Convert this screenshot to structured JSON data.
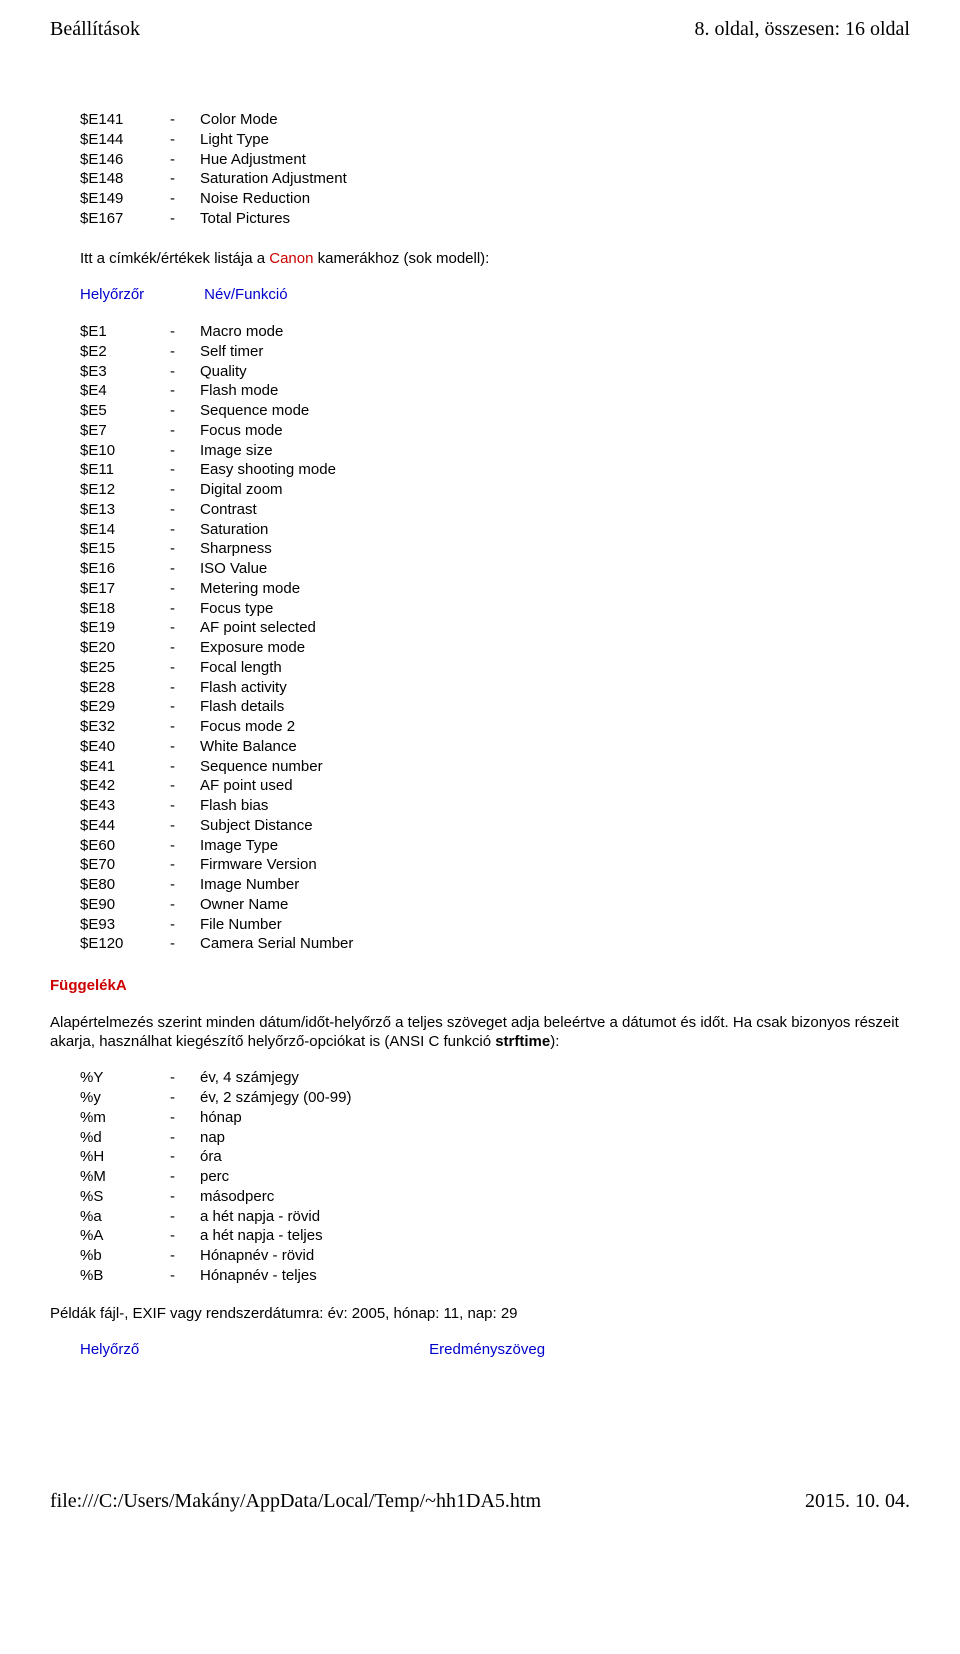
{
  "header": {
    "left": "Beállítások",
    "right": "8. oldal, összesen: 16 oldal"
  },
  "list1": [
    {
      "code": "$E141",
      "desc": "Color Mode"
    },
    {
      "code": "$E144",
      "desc": "Light Type"
    },
    {
      "code": "$E146",
      "desc": "Hue Adjustment"
    },
    {
      "code": "$E148",
      "desc": "Saturation Adjustment"
    },
    {
      "code": "$E149",
      "desc": "Noise Reduction"
    },
    {
      "code": "$E167",
      "desc": "Total Pictures"
    }
  ],
  "intro": {
    "prefix": "Itt a címkék/értékek listája a ",
    "link": "Canon",
    "suffix": " kamerákhoz (sok modell):"
  },
  "col_headers": {
    "h1": "Helyőrzőr",
    "h2": "Név/Funkció"
  },
  "list2": [
    {
      "code": "$E1",
      "desc": "Macro mode"
    },
    {
      "code": "$E2",
      "desc": "Self timer"
    },
    {
      "code": "$E3",
      "desc": "Quality"
    },
    {
      "code": "$E4",
      "desc": "Flash mode"
    },
    {
      "code": "$E5",
      "desc": "Sequence mode"
    },
    {
      "code": "$E7",
      "desc": "Focus mode"
    },
    {
      "code": "$E10",
      "desc": "Image size"
    },
    {
      "code": "$E11",
      "desc": "Easy shooting mode"
    },
    {
      "code": "$E12",
      "desc": "Digital zoom"
    },
    {
      "code": "$E13",
      "desc": "Contrast"
    },
    {
      "code": "$E14",
      "desc": "Saturation"
    },
    {
      "code": "$E15",
      "desc": "Sharpness"
    },
    {
      "code": "$E16",
      "desc": "ISO Value"
    },
    {
      "code": "$E17",
      "desc": "Metering mode"
    },
    {
      "code": "$E18",
      "desc": "Focus type"
    },
    {
      "code": "$E19",
      "desc": "AF point selected"
    },
    {
      "code": "$E20",
      "desc": "Exposure mode"
    },
    {
      "code": "$E25",
      "desc": "Focal length"
    },
    {
      "code": "$E28",
      "desc": "Flash activity"
    },
    {
      "code": "$E29",
      "desc": "Flash details"
    },
    {
      "code": "$E32",
      "desc": "Focus mode 2"
    },
    {
      "code": "$E40",
      "desc": "White Balance"
    },
    {
      "code": "$E41",
      "desc": "Sequence number"
    },
    {
      "code": "$E42",
      "desc": "AF point used"
    },
    {
      "code": "$E43",
      "desc": "Flash bias"
    },
    {
      "code": "$E44",
      "desc": "Subject Distance"
    },
    {
      "code": "$E60",
      "desc": "Image Type"
    },
    {
      "code": "$E70",
      "desc": "Firmware Version"
    },
    {
      "code": "$E80",
      "desc": "Image Number"
    },
    {
      "code": "$E90",
      "desc": "Owner Name"
    },
    {
      "code": "$E93",
      "desc": "File Number"
    },
    {
      "code": "$E120",
      "desc": "Camera Serial Number"
    }
  ],
  "appendix": {
    "heading": "FüggelékA",
    "para_prefix": "Alapértelmezés szerint minden dátum/időt-helyőrző a teljes szöveget adja beleértve a dátumot és időt. Ha csak bizonyos részeit akarja, használhat kiegészítő helyőrző-opciókat is (ANSI C funkció ",
    "para_bold": "strftime",
    "para_suffix": "):"
  },
  "list3": [
    {
      "code": "%Y",
      "desc": "év, 4 számjegy"
    },
    {
      "code": "%y",
      "desc": "év, 2 számjegy (00-99)"
    },
    {
      "code": "%m",
      "desc": "hónap"
    },
    {
      "code": "%d",
      "desc": "nap"
    },
    {
      "code": "%H",
      "desc": "óra"
    },
    {
      "code": "%M",
      "desc": "perc"
    },
    {
      "code": "%S",
      "desc": "másodperc"
    },
    {
      "code": "%a",
      "desc": "a hét napja - rövid"
    },
    {
      "code": "%A",
      "desc": "a hét napja - teljes"
    },
    {
      "code": "%b",
      "desc": "Hónapnév - rövid"
    },
    {
      "code": "%B",
      "desc": "Hónapnév - teljes"
    }
  ],
  "example_line": "Példák fájl-, EXIF vagy rendszerdátumra: év: 2005, hónap: 11, nap: 29",
  "bottom_headers": {
    "b1": "Helyőrző",
    "b2": "Eredményszöveg"
  },
  "footer": {
    "left": "file:///C:/Users/Makány/AppData/Local/Temp/~hh1DA5.htm",
    "right": "2015. 10. 04."
  },
  "dash": "-",
  "colors": {
    "text": "#000000",
    "blue": "#0000cc",
    "red": "#cc0000",
    "background": "#ffffff"
  },
  "fonts": {
    "header_family": "Times New Roman",
    "body_family": "Arial",
    "header_size_pt": 15,
    "body_size_pt": 11
  }
}
